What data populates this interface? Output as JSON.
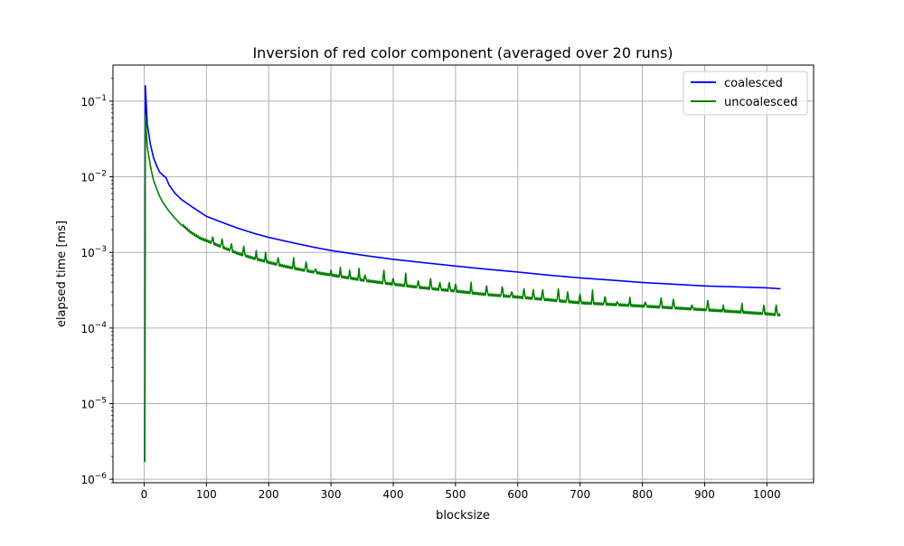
{
  "chart_data": {
    "type": "line",
    "title": "Inversion of red color component (averaged over 20 runs)",
    "xlabel": "blocksize",
    "ylabel": "elapsed time [ms]",
    "xlim": [
      -50,
      1075
    ],
    "xticks": [
      0,
      100,
      200,
      300,
      400,
      500,
      600,
      700,
      800,
      900,
      1000
    ],
    "xtick_labels": [
      "0",
      "100",
      "200",
      "300",
      "400",
      "500",
      "600",
      "700",
      "800",
      "900",
      "1000"
    ],
    "yscale": "log",
    "ylim": [
      9e-07,
      0.3
    ],
    "yticks": [
      1e-06,
      1e-05,
      0.0001,
      0.001,
      0.01,
      0.1
    ],
    "ytick_labels": [
      {
        "base": "10",
        "exp": "−6"
      },
      {
        "base": "10",
        "exp": "−5"
      },
      {
        "base": "10",
        "exp": "−4"
      },
      {
        "base": "10",
        "exp": "−3"
      },
      {
        "base": "10",
        "exp": "−2"
      },
      {
        "base": "10",
        "exp": "−1"
      }
    ],
    "grid": true,
    "legend_position": "top-right",
    "series": [
      {
        "name": "coalesced",
        "color": "#0000ff",
        "points": [
          [
            1,
            1.7e-06
          ],
          [
            2,
            0.16
          ],
          [
            5,
            0.05
          ],
          [
            10,
            0.027
          ],
          [
            15,
            0.018
          ],
          [
            20,
            0.014
          ],
          [
            25,
            0.0115
          ],
          [
            30,
            0.0105
          ],
          [
            35,
            0.0098
          ],
          [
            40,
            0.0078
          ],
          [
            50,
            0.006
          ],
          [
            60,
            0.005
          ],
          [
            75,
            0.0041
          ],
          [
            90,
            0.0034
          ],
          [
            100,
            0.003
          ],
          [
            125,
            0.0025
          ],
          [
            150,
            0.0021
          ],
          [
            175,
            0.0018
          ],
          [
            200,
            0.00158
          ],
          [
            225,
            0.00142
          ],
          [
            250,
            0.00128
          ],
          [
            275,
            0.00116
          ],
          [
            300,
            0.00106
          ],
          [
            350,
            0.00092
          ],
          [
            400,
            0.00081
          ],
          [
            450,
            0.00073
          ],
          [
            500,
            0.00066
          ],
          [
            550,
            0.0006
          ],
          [
            600,
            0.00055
          ],
          [
            650,
            0.0005
          ],
          [
            700,
            0.00046
          ],
          [
            750,
            0.00043
          ],
          [
            800,
            0.0004
          ],
          [
            850,
            0.00038
          ],
          [
            900,
            0.00036
          ],
          [
            950,
            0.00035
          ],
          [
            1000,
            0.00034
          ],
          [
            1022,
            0.00033
          ]
        ]
      },
      {
        "name": "uncoalesced",
        "color": "#008000",
        "points": [
          [
            1,
            1.7e-06
          ],
          [
            2,
            0.065
          ],
          [
            5,
            0.025
          ],
          [
            10,
            0.014
          ],
          [
            15,
            0.009
          ],
          [
            20,
            0.007
          ],
          [
            25,
            0.0055
          ],
          [
            30,
            0.0046
          ],
          [
            40,
            0.0035
          ],
          [
            50,
            0.0028
          ],
          [
            60,
            0.0023
          ],
          [
            75,
            0.0018
          ],
          [
            90,
            0.0015
          ],
          [
            100,
            0.0014
          ],
          [
            125,
            0.00115
          ],
          [
            150,
            0.00095
          ],
          [
            175,
            0.00082
          ],
          [
            200,
            0.00072
          ],
          [
            225,
            0.00064
          ],
          [
            250,
            0.00058
          ],
          [
            275,
            0.00053
          ],
          [
            300,
            0.00049
          ],
          [
            350,
            0.00042
          ],
          [
            400,
            0.00037
          ],
          [
            450,
            0.00033
          ],
          [
            500,
            0.0003
          ],
          [
            550,
            0.00027
          ],
          [
            600,
            0.00025
          ],
          [
            650,
            0.00023
          ],
          [
            700,
            0.00021
          ],
          [
            750,
            0.0002
          ],
          [
            800,
            0.00019
          ],
          [
            850,
            0.00018
          ],
          [
            900,
            0.00017
          ],
          [
            950,
            0.00016
          ],
          [
            1000,
            0.00015
          ],
          [
            1022,
            0.000145
          ]
        ],
        "spikes": [
          [
            110,
            0.0016
          ],
          [
            125,
            0.0015
          ],
          [
            140,
            0.0013
          ],
          [
            160,
            0.0012
          ],
          [
            180,
            0.001
          ],
          [
            195,
            0.00095
          ],
          [
            215,
            0.00085
          ],
          [
            240,
            0.0008
          ],
          [
            260,
            0.00075
          ],
          [
            275,
            0.0006
          ],
          [
            300,
            0.00055
          ],
          [
            315,
            0.0006
          ],
          [
            330,
            0.00055
          ],
          [
            345,
            0.00058
          ],
          [
            355,
            0.0005
          ],
          [
            385,
            0.00058
          ],
          [
            400,
            0.00045
          ],
          [
            420,
            0.0005
          ],
          [
            440,
            0.00042
          ],
          [
            460,
            0.00045
          ],
          [
            475,
            0.0004
          ],
          [
            490,
            0.0004
          ],
          [
            500,
            0.00038
          ],
          [
            525,
            0.00038
          ],
          [
            550,
            0.00036
          ],
          [
            575,
            0.00035
          ],
          [
            590,
            0.0003
          ],
          [
            610,
            0.00033
          ],
          [
            625,
            0.00032
          ],
          [
            640,
            0.00032
          ],
          [
            665,
            0.00033
          ],
          [
            680,
            0.0003
          ],
          [
            700,
            0.00028
          ],
          [
            720,
            0.0003
          ],
          [
            740,
            0.00026
          ],
          [
            760,
            0.00022
          ],
          [
            780,
            0.00024
          ],
          [
            805,
            0.00022
          ],
          [
            830,
            0.00025
          ],
          [
            850,
            0.00024
          ],
          [
            880,
            0.0002
          ],
          [
            905,
            0.00023
          ],
          [
            930,
            0.00019
          ],
          [
            960,
            0.0002
          ],
          [
            995,
            0.0002
          ],
          [
            1015,
            0.0002
          ]
        ]
      }
    ]
  }
}
